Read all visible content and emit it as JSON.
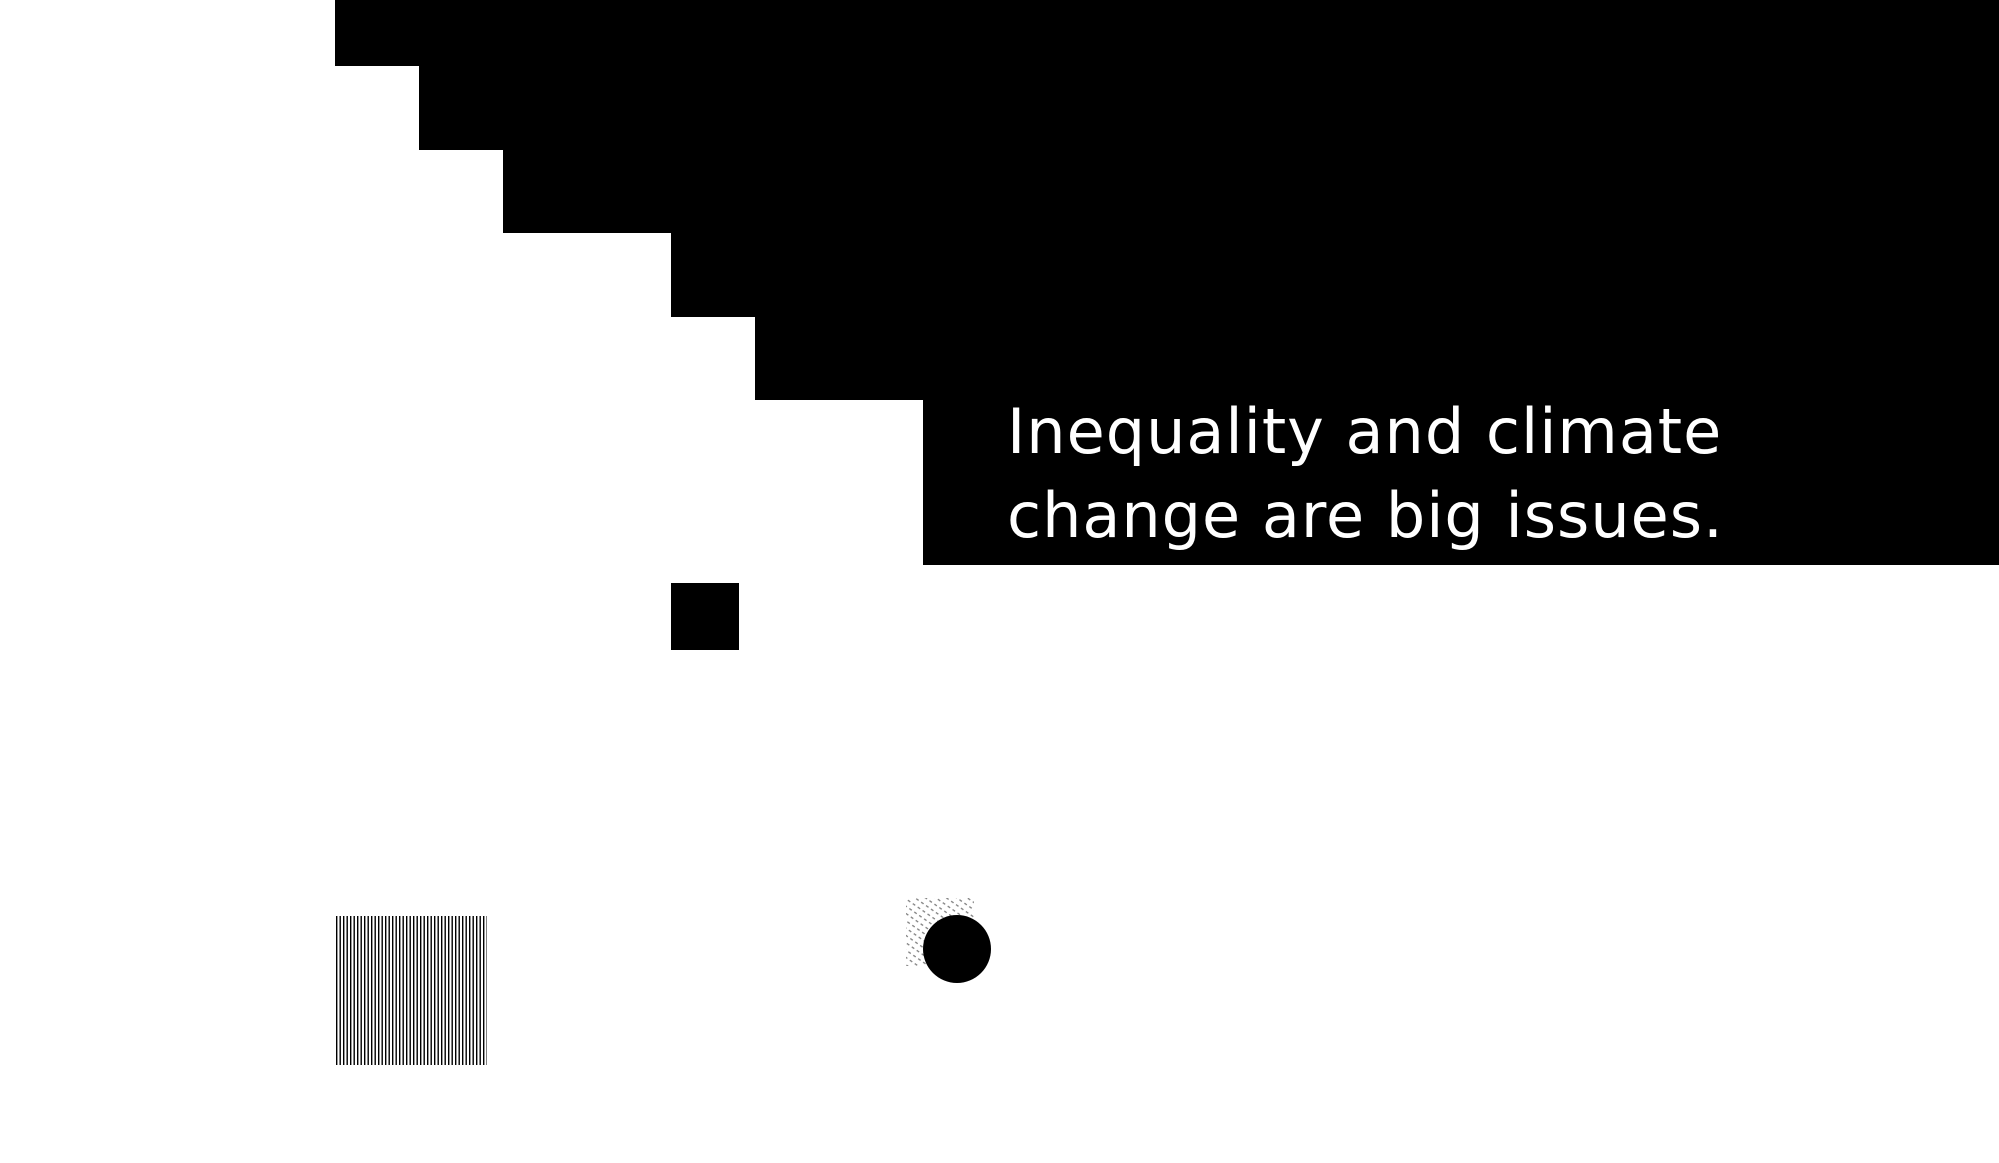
{
  "headline": {
    "line1": "Inequality and climate",
    "line2": "change are big issues."
  },
  "colors": {
    "background": "#ffffff",
    "block": "#000000",
    "text": "#ffffff"
  }
}
